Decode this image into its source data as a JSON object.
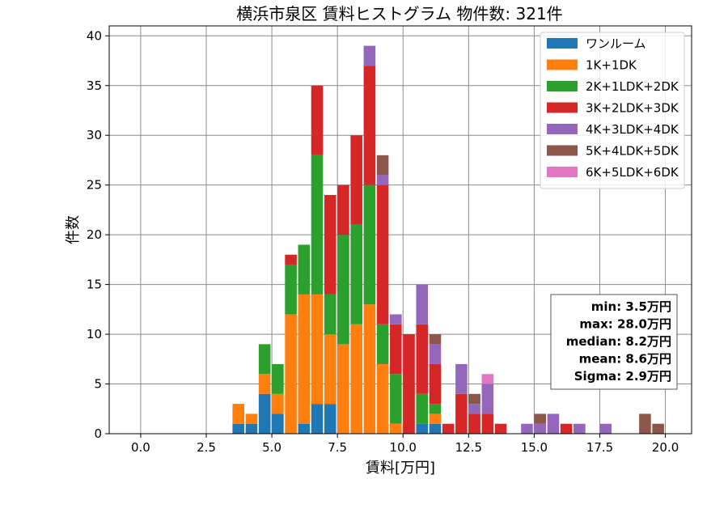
{
  "chart_data": {
    "type": "bar",
    "stacked": true,
    "title": "横浜市泉区 賃料ヒストグラム 物件数: 321件",
    "xlabel": "賃料[万円]",
    "ylabel": "件数",
    "xlim": [
      -1.2,
      21.0
    ],
    "ylim": [
      0,
      41
    ],
    "bin_width": 0.5,
    "grid": true,
    "legend_position": "top-right",
    "xticks": [
      0.0,
      2.5,
      5.0,
      7.5,
      10.0,
      12.5,
      15.0,
      17.5,
      20.0
    ],
    "xtick_labels": [
      "0.0",
      "2.5",
      "5.0",
      "7.5",
      "10.0",
      "12.5",
      "15.0",
      "17.5",
      "20.0"
    ],
    "yticks": [
      0,
      5,
      10,
      15,
      20,
      25,
      30,
      35,
      40
    ],
    "ytick_labels": [
      "0",
      "5",
      "10",
      "15",
      "20",
      "25",
      "30",
      "35",
      "40"
    ],
    "x": [
      3.5,
      4.0,
      4.5,
      5.0,
      5.5,
      6.0,
      6.5,
      7.0,
      7.5,
      8.0,
      8.5,
      9.0,
      9.5,
      10.0,
      10.5,
      11.0,
      11.5,
      12.0,
      12.5,
      13.0,
      13.5,
      14.0,
      14.5,
      15.0,
      15.5,
      16.0,
      16.5,
      17.0,
      17.5,
      18.0,
      18.5,
      19.0,
      19.5
    ],
    "series": [
      {
        "name": "ワンルーム",
        "color": "#1f77b4",
        "values": [
          1,
          1,
          4,
          2,
          0,
          1,
          3,
          3,
          0,
          0,
          0,
          0,
          0,
          0,
          1,
          1,
          0,
          0,
          0,
          0,
          0,
          0,
          0,
          0,
          0,
          0,
          0,
          0,
          0,
          0,
          0,
          0,
          0
        ]
      },
      {
        "name": "1K+1DK",
        "color": "#ff7f0e",
        "values": [
          2,
          1,
          2,
          2,
          12,
          13,
          11,
          7,
          9,
          11,
          13,
          7,
          1,
          0,
          0,
          1,
          0,
          0,
          0,
          0,
          0,
          0,
          0,
          0,
          0,
          0,
          0,
          0,
          0,
          0,
          0,
          0,
          0
        ]
      },
      {
        "name": "2K+1LDK+2DK",
        "color": "#2ca02c",
        "values": [
          0,
          0,
          3,
          3,
          5,
          5,
          14,
          4,
          11,
          10,
          12,
          4,
          5,
          0,
          3,
          1,
          0,
          0,
          0,
          0,
          0,
          0,
          0,
          0,
          0,
          0,
          0,
          0,
          0,
          0,
          0,
          0,
          0
        ]
      },
      {
        "name": "3K+2LDK+3DK",
        "color": "#d62728",
        "values": [
          0,
          0,
          0,
          0,
          1,
          0,
          7,
          10,
          5,
          9,
          12,
          14,
          5,
          10,
          7,
          4,
          1,
          4,
          2,
          2,
          1,
          0,
          0,
          0,
          0,
          1,
          0,
          0,
          0,
          0,
          0,
          0,
          0
        ]
      },
      {
        "name": "4K+3LDK+4DK",
        "color": "#9467bd",
        "values": [
          0,
          0,
          0,
          0,
          0,
          0,
          0,
          0,
          0,
          0,
          2,
          1,
          1,
          0,
          4,
          2,
          0,
          3,
          1,
          3,
          0,
          0,
          1,
          1,
          2,
          0,
          1,
          0,
          1,
          0,
          0,
          0,
          0
        ]
      },
      {
        "name": "5K+4LDK+5DK",
        "color": "#8c564b",
        "values": [
          0,
          0,
          0,
          0,
          0,
          0,
          0,
          0,
          0,
          0,
          0,
          2,
          0,
          0,
          0,
          1,
          0,
          0,
          1,
          0,
          0,
          0,
          0,
          1,
          0,
          0,
          0,
          0,
          0,
          0,
          0,
          2,
          1
        ]
      },
      {
        "name": "6K+5LDK+6DK",
        "color": "#e377c2",
        "values": [
          0,
          0,
          0,
          0,
          0,
          0,
          0,
          0,
          0,
          0,
          0,
          0,
          0,
          0,
          0,
          0,
          0,
          0,
          0,
          1,
          0,
          0,
          0,
          0,
          0,
          0,
          0,
          0,
          0,
          0,
          0,
          0,
          0
        ]
      }
    ],
    "stats_box": [
      {
        "label": "min",
        "value": "3.5万円"
      },
      {
        "label": "max",
        "value": "28.0万円"
      },
      {
        "label": "median",
        "value": "8.2万円"
      },
      {
        "label": "mean",
        "value": "8.6万円"
      },
      {
        "label": "Sigma",
        "value": "2.9万円"
      }
    ]
  }
}
